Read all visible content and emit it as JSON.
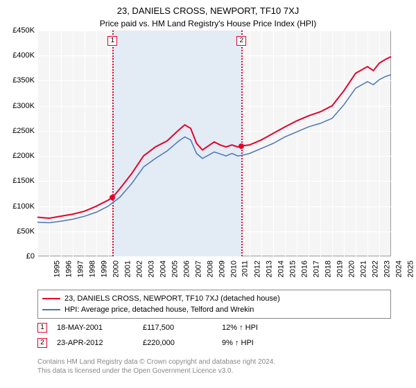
{
  "title": "23, DANIELS CROSS, NEWPORT, TF10 7XJ",
  "subtitle": "Price paid vs. HM Land Registry's House Price Index (HPI)",
  "chart": {
    "type": "line",
    "background_color": "#f5f5f5",
    "grid_color": "#ffffff",
    "border_color": "#999999",
    "ylim": [
      0,
      450000
    ],
    "ytick_step": 50000,
    "yticks": [
      "£0",
      "£50K",
      "£100K",
      "£150K",
      "£200K",
      "£250K",
      "£300K",
      "£350K",
      "£400K",
      "£450K"
    ],
    "xlim": [
      1995,
      2025
    ],
    "xticks": [
      "1995",
      "1996",
      "1997",
      "1998",
      "1999",
      "2000",
      "2001",
      "2002",
      "2003",
      "2004",
      "2005",
      "2006",
      "2007",
      "2008",
      "2009",
      "2010",
      "2011",
      "2012",
      "2013",
      "2014",
      "2015",
      "2016",
      "2017",
      "2018",
      "2019",
      "2020",
      "2021",
      "2022",
      "2023",
      "2024",
      "2025"
    ],
    "label_fontsize": 11,
    "marker_band": {
      "start": 2001.38,
      "end": 2012.31,
      "color": "#e3ebf4"
    },
    "marker_lines": [
      {
        "x": 2001.38,
        "num": "1",
        "color": "#e4002b"
      },
      {
        "x": 2012.31,
        "num": "2",
        "color": "#e4002b"
      }
    ],
    "series": [
      {
        "name": "property",
        "color": "#e4002b",
        "width": 2,
        "data": [
          [
            1995,
            78000
          ],
          [
            1996,
            76000
          ],
          [
            1997,
            80000
          ],
          [
            1998,
            84000
          ],
          [
            1999,
            90000
          ],
          [
            2000,
            100000
          ],
          [
            2001,
            112000
          ],
          [
            2001.38,
            117500
          ],
          [
            2002,
            135000
          ],
          [
            2003,
            165000
          ],
          [
            2004,
            200000
          ],
          [
            2005,
            218000
          ],
          [
            2006,
            230000
          ],
          [
            2007,
            252000
          ],
          [
            2007.5,
            262000
          ],
          [
            2008,
            255000
          ],
          [
            2008.5,
            225000
          ],
          [
            2009,
            212000
          ],
          [
            2010,
            228000
          ],
          [
            2010.5,
            222000
          ],
          [
            2011,
            218000
          ],
          [
            2011.5,
            222000
          ],
          [
            2012,
            218000
          ],
          [
            2012.31,
            220000
          ],
          [
            2013,
            222000
          ],
          [
            2014,
            232000
          ],
          [
            2015,
            245000
          ],
          [
            2016,
            258000
          ],
          [
            2017,
            270000
          ],
          [
            2018,
            280000
          ],
          [
            2019,
            288000
          ],
          [
            2020,
            300000
          ],
          [
            2021,
            330000
          ],
          [
            2022,
            365000
          ],
          [
            2023,
            378000
          ],
          [
            2023.5,
            370000
          ],
          [
            2024,
            385000
          ],
          [
            2024.5,
            392000
          ],
          [
            2025,
            398000
          ]
        ]
      },
      {
        "name": "hpi",
        "color": "#4a74b8",
        "width": 1.5,
        "data": [
          [
            1995,
            68000
          ],
          [
            1996,
            67000
          ],
          [
            1997,
            70000
          ],
          [
            1998,
            74000
          ],
          [
            1999,
            80000
          ],
          [
            2000,
            88000
          ],
          [
            2001,
            100000
          ],
          [
            2002,
            118000
          ],
          [
            2003,
            145000
          ],
          [
            2004,
            178000
          ],
          [
            2005,
            195000
          ],
          [
            2006,
            210000
          ],
          [
            2007,
            230000
          ],
          [
            2007.5,
            238000
          ],
          [
            2008,
            232000
          ],
          [
            2008.5,
            205000
          ],
          [
            2009,
            195000
          ],
          [
            2010,
            208000
          ],
          [
            2010.5,
            204000
          ],
          [
            2011,
            200000
          ],
          [
            2011.5,
            205000
          ],
          [
            2012,
            200000
          ],
          [
            2012.5,
            202000
          ],
          [
            2013,
            205000
          ],
          [
            2014,
            215000
          ],
          [
            2015,
            225000
          ],
          [
            2016,
            238000
          ],
          [
            2017,
            248000
          ],
          [
            2018,
            258000
          ],
          [
            2019,
            265000
          ],
          [
            2020,
            275000
          ],
          [
            2021,
            302000
          ],
          [
            2022,
            335000
          ],
          [
            2023,
            348000
          ],
          [
            2023.5,
            342000
          ],
          [
            2024,
            352000
          ],
          [
            2024.5,
            358000
          ],
          [
            2025,
            362000
          ]
        ]
      }
    ],
    "sale_points": [
      {
        "x": 2001.38,
        "y": 117500
      },
      {
        "x": 2012.31,
        "y": 220000
      }
    ]
  },
  "legend": {
    "items": [
      {
        "color": "#e4002b",
        "width": 2,
        "label": "23, DANIELS CROSS, NEWPORT, TF10 7XJ (detached house)"
      },
      {
        "color": "#4a74b8",
        "width": 1.5,
        "label": "HPI: Average price, detached house, Telford and Wrekin"
      }
    ]
  },
  "sales": [
    {
      "num": "1",
      "date": "18-MAY-2001",
      "price": "£117,500",
      "hpi": "12% ↑ HPI"
    },
    {
      "num": "2",
      "date": "23-APR-2012",
      "price": "£220,000",
      "hpi": "9% ↑ HPI"
    }
  ],
  "footer": {
    "line1": "Contains HM Land Registry data © Crown copyright and database right 2024.",
    "line2": "This data is licensed under the Open Government Licence v3.0."
  }
}
